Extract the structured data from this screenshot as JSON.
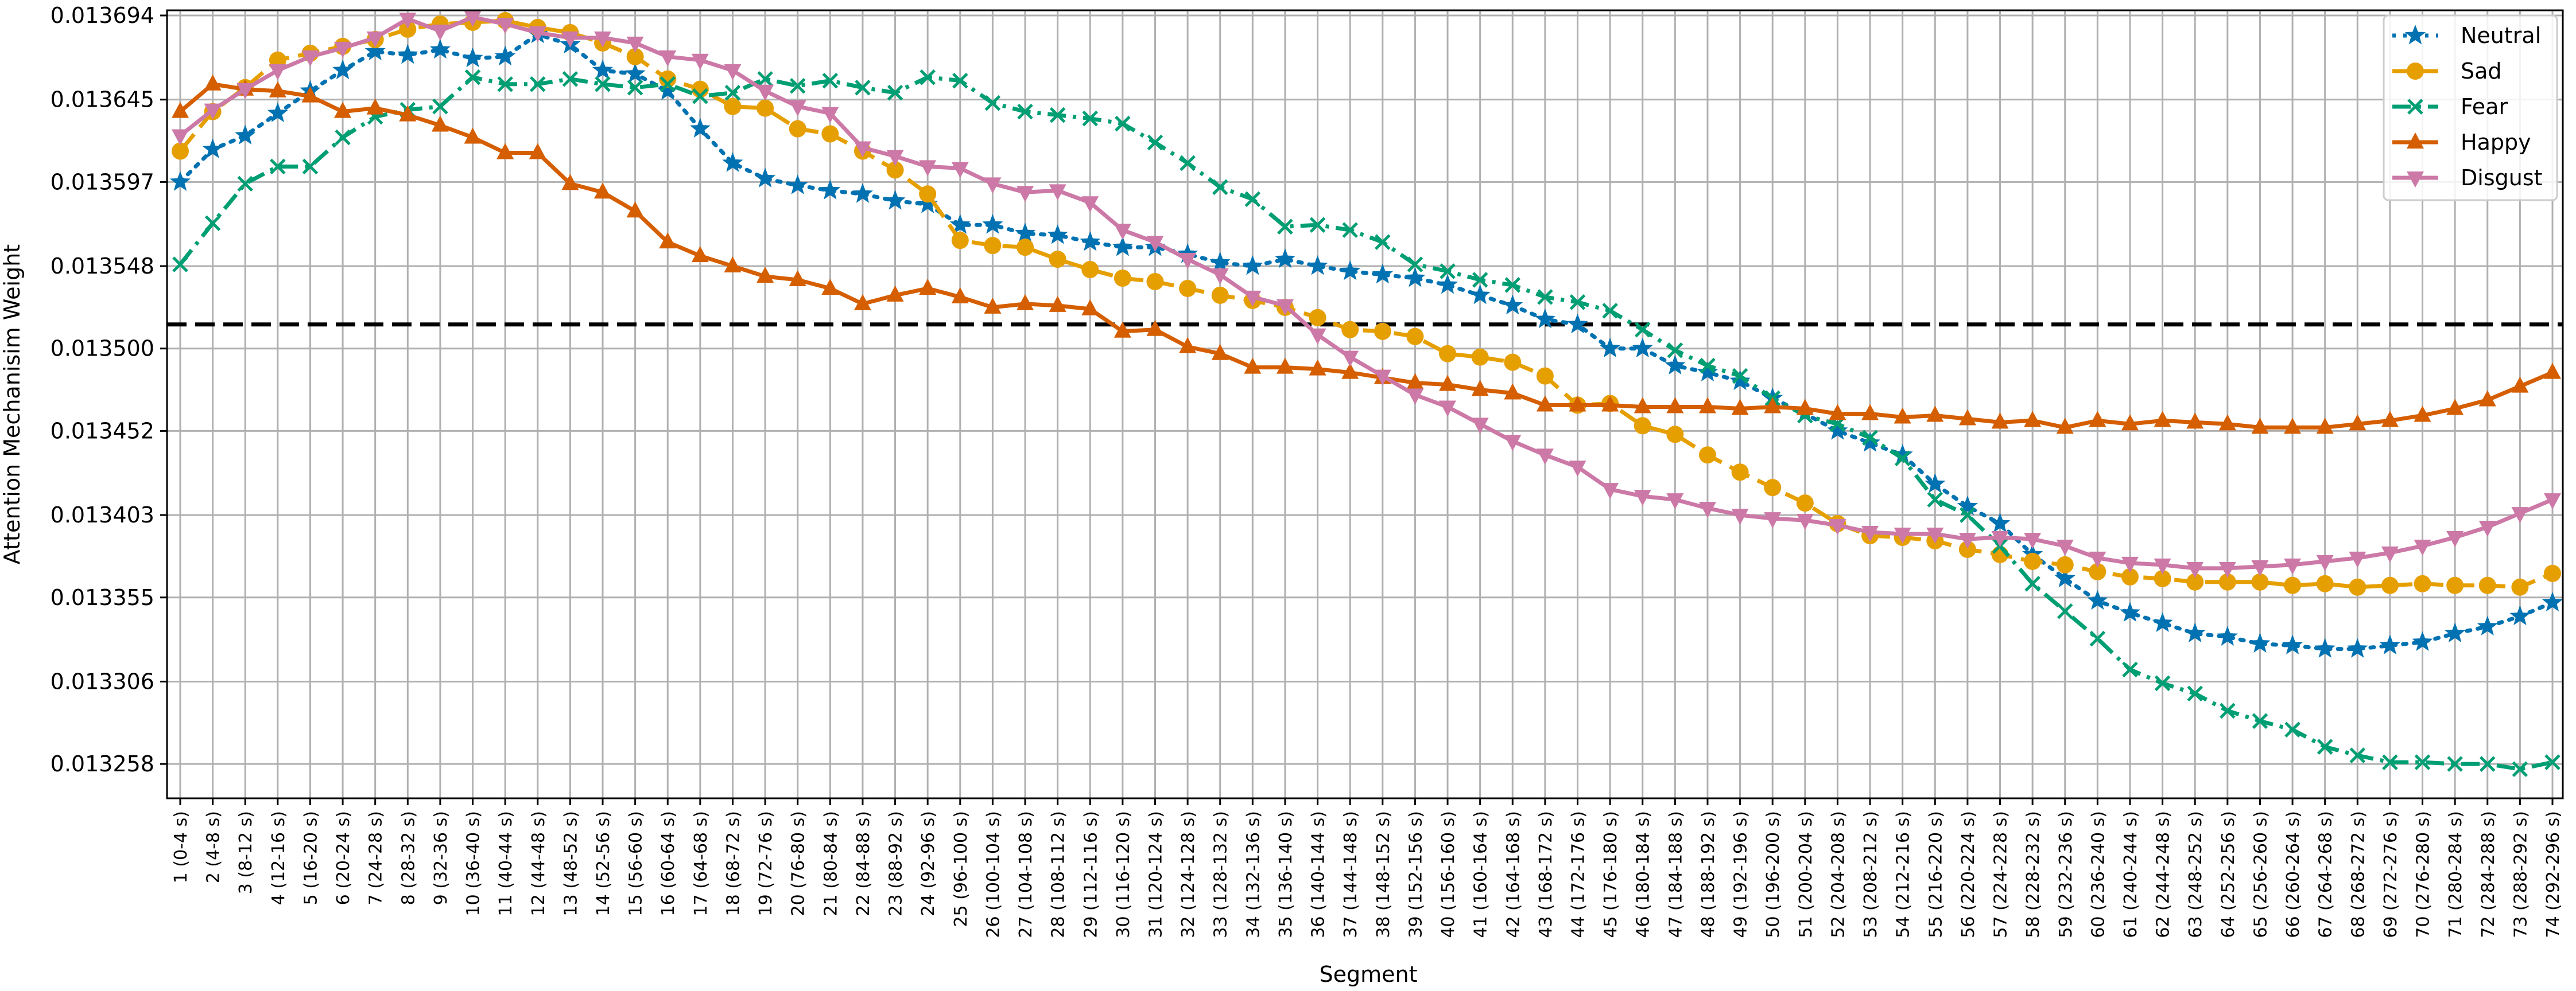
{
  "chart_data": {
    "type": "line",
    "xlabel": "Segment",
    "ylabel": "Attention Mechanisim Weight",
    "categories": [
      "1 (0-4 s)",
      "2 (4-8 s)",
      "3 (8-12 s)",
      "4 (12-16 s)",
      "5 (16-20 s)",
      "6 (20-24 s)",
      "7 (24-28 s)",
      "8 (28-32 s)",
      "9 (32-36 s)",
      "10 (36-40 s)",
      "11 (40-44 s)",
      "12 (44-48 s)",
      "13 (48-52 s)",
      "14 (52-56 s)",
      "15 (56-60 s)",
      "16 (60-64 s)",
      "17 (64-68 s)",
      "18 (68-72 s)",
      "19 (72-76 s)",
      "20 (76-80 s)",
      "21 (80-84 s)",
      "22 (84-88 s)",
      "23 (88-92 s)",
      "24 (92-96 s)",
      "25 (96-100 s)",
      "26 (100-104 s)",
      "27 (104-108 s)",
      "28 (108-112 s)",
      "29 (112-116 s)",
      "30 (116-120 s)",
      "31 (120-124 s)",
      "32 (124-128 s)",
      "33 (128-132 s)",
      "34 (132-136 s)",
      "35 (136-140 s)",
      "36 (140-144 s)",
      "37 (144-148 s)",
      "38 (148-152 s)",
      "39 (152-156 s)",
      "40 (156-160 s)",
      "41 (160-164 s)",
      "42 (164-168 s)",
      "43 (168-172 s)",
      "44 (172-176 s)",
      "45 (176-180 s)",
      "46 (180-184 s)",
      "47 (184-188 s)",
      "48 (188-192 s)",
      "49 (192-196 s)",
      "50 (196-200 s)",
      "51 (200-204 s)",
      "52 (204-208 s)",
      "53 (208-212 s)",
      "54 (212-216 s)",
      "55 (216-220 s)",
      "56 (220-224 s)",
      "57 (224-228 s)",
      "58 (228-232 s)",
      "59 (232-236 s)",
      "60 (236-240 s)",
      "61 (240-244 s)",
      "62 (244-248 s)",
      "63 (248-252 s)",
      "64 (252-256 s)",
      "65 (256-260 s)",
      "66 (260-264 s)",
      "67 (264-268 s)",
      "68 (268-272 s)",
      "69 (272-276 s)",
      "70 (276-280 s)",
      "71 (280-284 s)",
      "72 (284-288 s)",
      "73 (288-292 s)",
      "74 (292-296 s)"
    ],
    "yticks": [
      "0.013258",
      "0.013306",
      "0.013355",
      "0.013403",
      "0.013452",
      "0.013500",
      "0.013548",
      "0.013597",
      "0.013645",
      "0.013694"
    ],
    "ylim": [
      0.013238,
      0.013697
    ],
    "grid": true,
    "legend_position": "top-right",
    "reference_line": {
      "y": 0.013514,
      "style": "dashed",
      "color": "#000000"
    },
    "series": [
      {
        "name": "Neutral",
        "color": "#0072b2",
        "marker": "star",
        "dash": "dotted",
        "values": [
          0.013597,
          0.013616,
          0.013624,
          0.013637,
          0.01365,
          0.013662,
          0.013673,
          0.013671,
          0.013674,
          0.013669,
          0.01367,
          0.013683,
          0.013677,
          0.013662,
          0.01366,
          0.01365,
          0.013628,
          0.013608,
          0.013599,
          0.013595,
          0.013592,
          0.01359,
          0.013586,
          0.013584,
          0.013572,
          0.013572,
          0.013567,
          0.013566,
          0.013562,
          0.013559,
          0.013559,
          0.013555,
          0.01355,
          0.013548,
          0.013552,
          0.013548,
          0.013545,
          0.013543,
          0.013541,
          0.013537,
          0.013531,
          0.013525,
          0.013517,
          0.013514,
          0.0135,
          0.0135,
          0.01349,
          0.013486,
          0.013481,
          0.013471,
          0.013462,
          0.013452,
          0.013445,
          0.013438,
          0.013421,
          0.013408,
          0.013398,
          0.01338,
          0.013366,
          0.013353,
          0.013346,
          0.01334,
          0.013334,
          0.013332,
          0.013328,
          0.013327,
          0.013325,
          0.013325,
          0.013327,
          0.013329,
          0.013334,
          0.013338,
          0.013344,
          0.013352
        ]
      },
      {
        "name": "Sad",
        "color": "#e69f00",
        "marker": "circle",
        "dash": "dashed",
        "values": [
          0.013615,
          0.013638,
          0.013652,
          0.013668,
          0.013672,
          0.013676,
          0.01368,
          0.013686,
          0.013689,
          0.01369,
          0.013691,
          0.013687,
          0.013684,
          0.013678,
          0.01367,
          0.013657,
          0.013651,
          0.013641,
          0.01364,
          0.013628,
          0.013625,
          0.013615,
          0.013604,
          0.01359,
          0.013563,
          0.01356,
          0.013559,
          0.013552,
          0.013546,
          0.013541,
          0.013539,
          0.013535,
          0.013531,
          0.013528,
          0.013524,
          0.013518,
          0.013511,
          0.01351,
          0.013507,
          0.013497,
          0.013495,
          0.013492,
          0.013484,
          0.013467,
          0.013468,
          0.013455,
          0.01345,
          0.013438,
          0.013428,
          0.013419,
          0.01341,
          0.013398,
          0.013391,
          0.01339,
          0.013388,
          0.013383,
          0.01338,
          0.013376,
          0.013374,
          0.01337,
          0.013367,
          0.013366,
          0.013364,
          0.013364,
          0.013364,
          0.013362,
          0.013363,
          0.013361,
          0.013362,
          0.013363,
          0.013362,
          0.013362,
          0.013361,
          0.013369
        ]
      },
      {
        "name": "Fear",
        "color": "#009e73",
        "marker": "x",
        "dash": "dashdot",
        "values": [
          0.013549,
          0.013573,
          0.013596,
          0.013606,
          0.013606,
          0.013623,
          0.013635,
          0.013639,
          0.013641,
          0.013658,
          0.013654,
          0.013654,
          0.013657,
          0.013654,
          0.013652,
          0.013654,
          0.013647,
          0.013649,
          0.013657,
          0.013653,
          0.013656,
          0.013652,
          0.013649,
          0.013658,
          0.013656,
          0.013643,
          0.013638,
          0.013636,
          0.013634,
          0.013631,
          0.01362,
          0.013608,
          0.013594,
          0.013587,
          0.013571,
          0.013572,
          0.013569,
          0.013562,
          0.013549,
          0.013545,
          0.01354,
          0.013537,
          0.01353,
          0.013527,
          0.013522,
          0.013511,
          0.013499,
          0.01349,
          0.013484,
          0.013471,
          0.013461,
          0.013456,
          0.013448,
          0.013436,
          0.013412,
          0.013403,
          0.013385,
          0.013363,
          0.013347,
          0.013331,
          0.013313,
          0.013305,
          0.013299,
          0.013289,
          0.013283,
          0.013278,
          0.013268,
          0.013263,
          0.013259,
          0.013259,
          0.013258,
          0.013258,
          0.013255,
          0.013259
        ]
      },
      {
        "name": "Happy",
        "color": "#d55e00",
        "marker": "triangle-up",
        "dash": "solid",
        "values": [
          0.013638,
          0.013654,
          0.013651,
          0.01365,
          0.013647,
          0.013638,
          0.01364,
          0.013636,
          0.01363,
          0.013623,
          0.013614,
          0.013614,
          0.013596,
          0.013591,
          0.01358,
          0.013562,
          0.013554,
          0.013548,
          0.013542,
          0.01354,
          0.013535,
          0.013526,
          0.013531,
          0.013535,
          0.01353,
          0.013524,
          0.013526,
          0.013525,
          0.013523,
          0.01351,
          0.013511,
          0.013501,
          0.013497,
          0.013489,
          0.013489,
          0.013488,
          0.013486,
          0.013483,
          0.01348,
          0.013479,
          0.013476,
          0.013474,
          0.013467,
          0.013467,
          0.013467,
          0.013466,
          0.013466,
          0.013466,
          0.013465,
          0.013466,
          0.013465,
          0.013462,
          0.013462,
          0.01346,
          0.013461,
          0.013459,
          0.013457,
          0.013458,
          0.013454,
          0.013458,
          0.013456,
          0.013458,
          0.013457,
          0.013456,
          0.013454,
          0.013454,
          0.013454,
          0.013456,
          0.013458,
          0.013461,
          0.013465,
          0.01347,
          0.013478,
          0.013486
        ]
      },
      {
        "name": "Disgust",
        "color": "#cc79a7",
        "marker": "triangle-down",
        "dash": "solid",
        "values": [
          0.013624,
          0.013639,
          0.013651,
          0.013662,
          0.01367,
          0.013675,
          0.013681,
          0.013692,
          0.013685,
          0.013693,
          0.013689,
          0.013684,
          0.013681,
          0.013681,
          0.013678,
          0.01367,
          0.013668,
          0.013662,
          0.01365,
          0.013641,
          0.013637,
          0.013617,
          0.013612,
          0.013606,
          0.013605,
          0.013596,
          0.013591,
          0.013592,
          0.013585,
          0.013569,
          0.013562,
          0.013552,
          0.013543,
          0.01353,
          0.013525,
          0.013508,
          0.013495,
          0.013484,
          0.013473,
          0.013466,
          0.013456,
          0.013446,
          0.013438,
          0.013431,
          0.013418,
          0.013414,
          0.013412,
          0.013407,
          0.013403,
          0.013401,
          0.0134,
          0.013397,
          0.013393,
          0.013392,
          0.013392,
          0.013389,
          0.01339,
          0.013389,
          0.013385,
          0.013378,
          0.013375,
          0.013374,
          0.013372,
          0.013372,
          0.013373,
          0.013374,
          0.013376,
          0.013378,
          0.013381,
          0.013385,
          0.01339,
          0.013396,
          0.013404,
          0.013412
        ]
      }
    ]
  }
}
